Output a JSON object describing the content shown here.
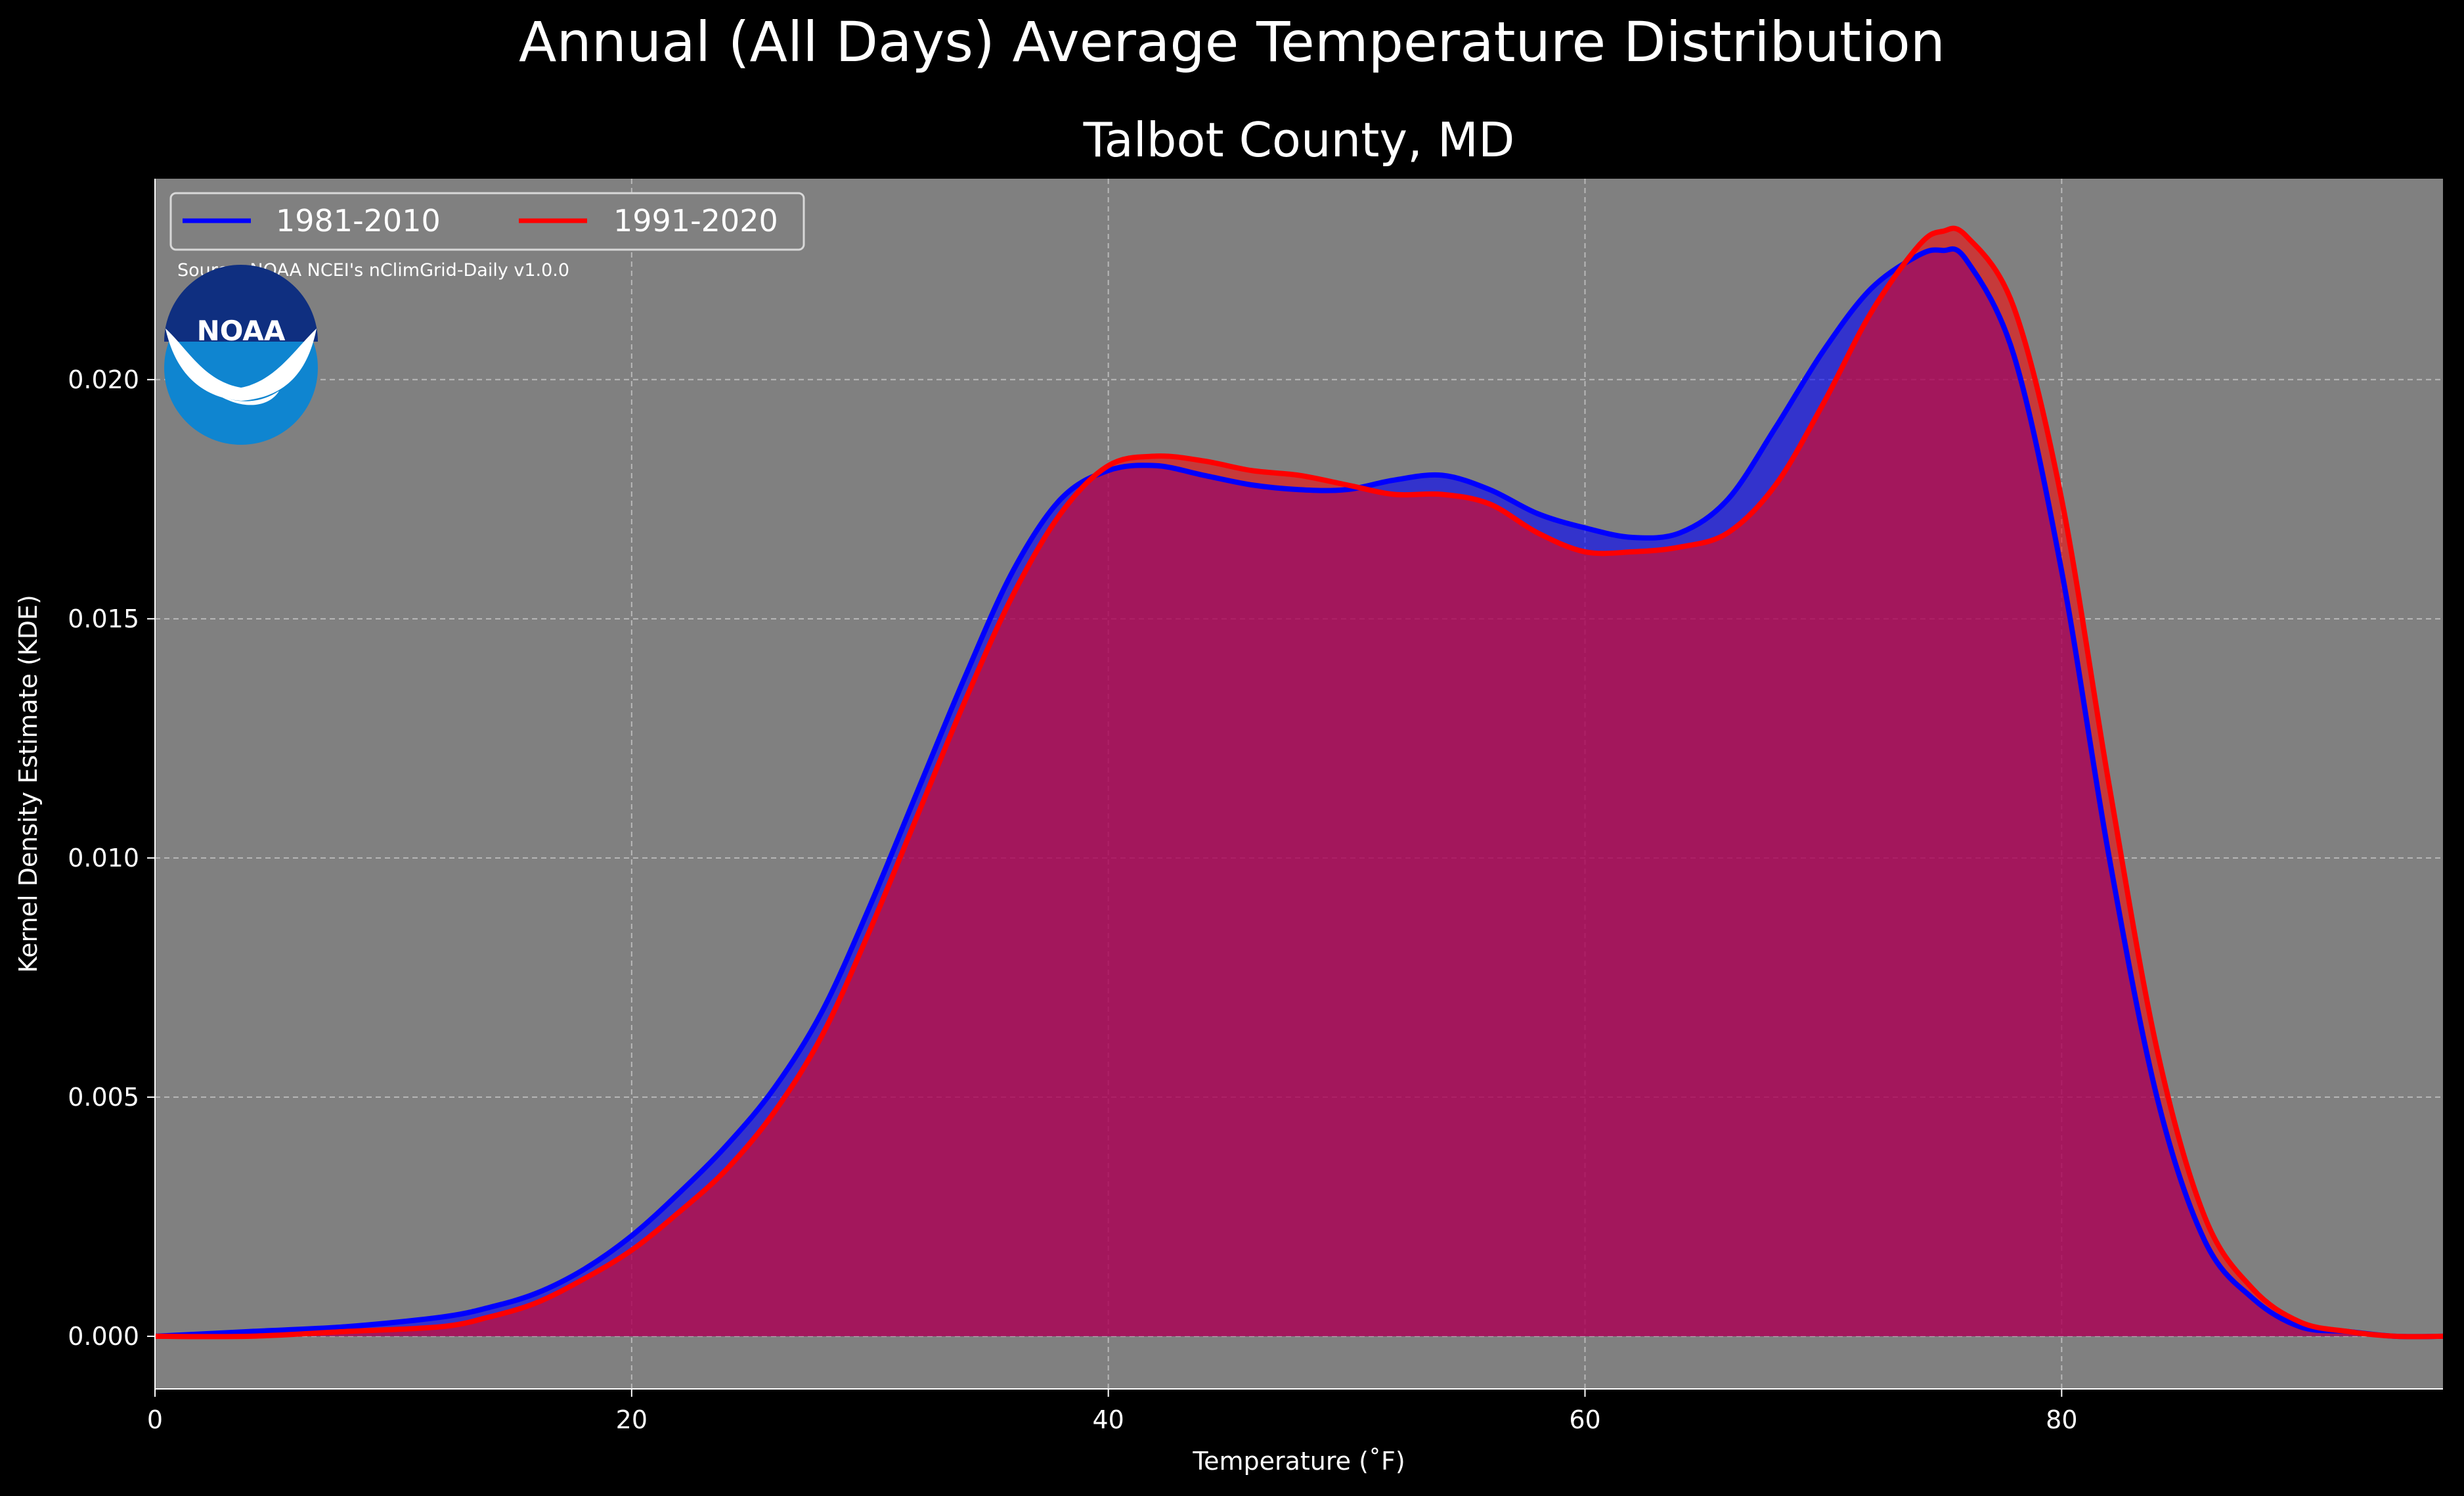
{
  "suptitle": "Annual (All Days) Average Temperature Distribution",
  "source_text": "Source: NOAA NCEI's nClimGrid-Daily v1.0.0",
  "logo_text": "NOAA",
  "colors": {
    "background": "#000000",
    "plot_bg": "#808080",
    "series_1981": "#0000ff",
    "series_1991": "#ff0000",
    "fill_overlap": "#9e1f5c"
  },
  "chart_data": {
    "type": "area",
    "title": "Talbot County, MD",
    "xlabel": "Temperature (˚F)",
    "ylabel": "Kernel Density Estimate (KDE)",
    "xlim": [
      0,
      96
    ],
    "ylim": [
      -0.0011,
      0.0242
    ],
    "xticks": [
      0,
      20,
      40,
      60,
      80
    ],
    "xtick_labels": [
      "0",
      "20",
      "40",
      "60",
      "80"
    ],
    "yticks": [
      0,
      0.005,
      0.01,
      0.015,
      0.02
    ],
    "ytick_labels": [
      "0.000",
      "0.005",
      "0.010",
      "0.015",
      "0.020"
    ],
    "grid": true,
    "legend": {
      "position": "top-left",
      "ncol": 2
    },
    "x": [
      0,
      4,
      8,
      12,
      14,
      16,
      18,
      20,
      22,
      24,
      26,
      28,
      30,
      32,
      34,
      36,
      38,
      40,
      42,
      44,
      46,
      48,
      50,
      52,
      54,
      56,
      58,
      60,
      62,
      64,
      66,
      68,
      70,
      72,
      74,
      75,
      76,
      78,
      80,
      82,
      84,
      86,
      88,
      90,
      92,
      94,
      96
    ],
    "series": [
      {
        "name": "1981-2010",
        "color": "#0000ff",
        "values": [
          0.0,
          0.0001,
          0.0002,
          0.0004,
          0.0006,
          0.0009,
          0.0014,
          0.0021,
          0.003,
          0.004,
          0.0052,
          0.0068,
          0.009,
          0.0114,
          0.0138,
          0.016,
          0.0175,
          0.0181,
          0.0182,
          0.018,
          0.0178,
          0.0177,
          0.0177,
          0.0179,
          0.018,
          0.0177,
          0.0172,
          0.0169,
          0.0167,
          0.0168,
          0.0175,
          0.019,
          0.0206,
          0.0219,
          0.0226,
          0.0227,
          0.0225,
          0.0205,
          0.016,
          0.01,
          0.005,
          0.002,
          0.0008,
          0.0002,
          0.0001,
          0.0,
          0.0
        ]
      },
      {
        "name": "1991-2020",
        "color": "#ff0000",
        "values": [
          0.0,
          0.0,
          0.0001,
          0.0002,
          0.0004,
          0.0007,
          0.0012,
          0.0018,
          0.0026,
          0.0035,
          0.0047,
          0.0063,
          0.0085,
          0.0109,
          0.0133,
          0.0155,
          0.0172,
          0.0182,
          0.0184,
          0.0183,
          0.0181,
          0.018,
          0.0178,
          0.0176,
          0.0176,
          0.0174,
          0.0168,
          0.0164,
          0.0164,
          0.0165,
          0.0168,
          0.0178,
          0.0195,
          0.0214,
          0.0228,
          0.0231,
          0.023,
          0.0215,
          0.0175,
          0.0115,
          0.006,
          0.0025,
          0.001,
          0.0003,
          0.0001,
          0.0,
          0.0
        ]
      }
    ]
  }
}
